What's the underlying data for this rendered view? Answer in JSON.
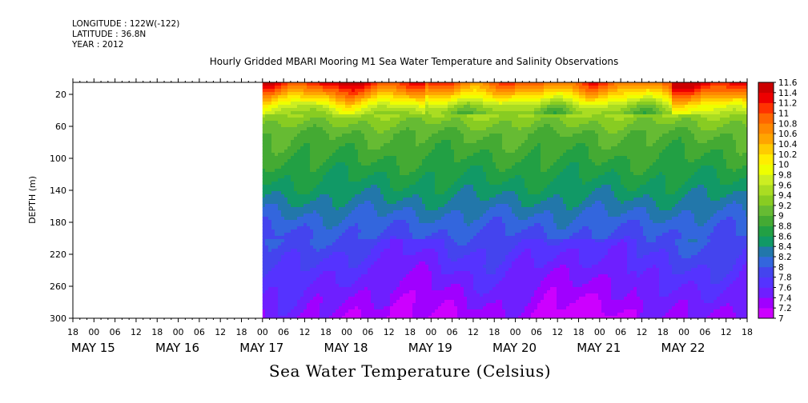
{
  "header": {
    "longitude": "LONGITUDE : 122W(-122)",
    "latitude": "LATITUDE : 36.8N",
    "year": "YEAR : 2012"
  },
  "chart_data": {
    "type": "heatmap",
    "title": "Hourly Gridded MBARI Mooring M1 Sea Water Temperature and Salinity Observations",
    "subtitle": "Sea Water Temperature (Celsius)",
    "ylabel": "DEPTH (m)",
    "xlabel": "",
    "y_range": [
      5,
      300
    ],
    "y_inverted": true,
    "y_ticks": [
      20,
      60,
      100,
      140,
      180,
      220,
      260,
      300
    ],
    "hour_ticks": [
      "18",
      "00",
      "06",
      "12",
      "18",
      "00",
      "06",
      "12",
      "18",
      "00",
      "06",
      "12",
      "18",
      "00",
      "06",
      "12",
      "18",
      "00",
      "06",
      "12",
      "18",
      "00",
      "06",
      "12",
      "18",
      "00",
      "06",
      "12",
      "18",
      "00",
      "06",
      "12",
      "18"
    ],
    "day_labels": [
      "MAY 15",
      "MAY 16",
      "MAY 17",
      "MAY 18",
      "MAY 19",
      "MAY 20",
      "MAY 21",
      "MAY 22"
    ],
    "data_start_hour": 54,
    "colorbar": {
      "levels": [
        7,
        7.2,
        7.4,
        7.6,
        7.8,
        8,
        8.2,
        8.4,
        8.6,
        8.8,
        9,
        9.2,
        9.4,
        9.6,
        9.8,
        10,
        10.2,
        10.4,
        10.6,
        10.8,
        11,
        11.2,
        11.4,
        11.6
      ],
      "labels": [
        "7",
        "7.2",
        "7.4",
        "7.6",
        "7.8",
        "8",
        "8.2",
        "8.4",
        "8.6",
        "8.8",
        "9",
        "9.2",
        "9.4",
        "9.6",
        "9.8",
        "10",
        "10.2",
        "10.4",
        "10.6",
        "10.8",
        "11",
        "11.2",
        "11.4",
        "11.6"
      ],
      "colors": [
        "#cc00ff",
        "#a000ff",
        "#6e1fff",
        "#5533ff",
        "#4444ee",
        "#3366dd",
        "#2277aa",
        "#119966",
        "#22a044",
        "#44aa33",
        "#66bb33",
        "#88cc22",
        "#aadd22",
        "#ccee22",
        "#eeff00",
        "#ffee00",
        "#ffcc00",
        "#ffa500",
        "#ff8800",
        "#ff6600",
        "#ff3300",
        "#ee0000",
        "#cc0000"
      ]
    },
    "depth_profile": [
      {
        "depth": 5,
        "temp": 11.3
      },
      {
        "depth": 20,
        "temp": 10.6
      },
      {
        "depth": 35,
        "temp": 9.8
      },
      {
        "depth": 50,
        "temp": 9.3
      },
      {
        "depth": 70,
        "temp": 9.0
      },
      {
        "depth": 100,
        "temp": 8.8
      },
      {
        "depth": 140,
        "temp": 8.5
      },
      {
        "depth": 180,
        "temp": 8.1
      },
      {
        "depth": 220,
        "temp": 7.8
      },
      {
        "depth": 260,
        "temp": 7.55
      },
      {
        "depth": 300,
        "temp": 7.3
      }
    ]
  }
}
